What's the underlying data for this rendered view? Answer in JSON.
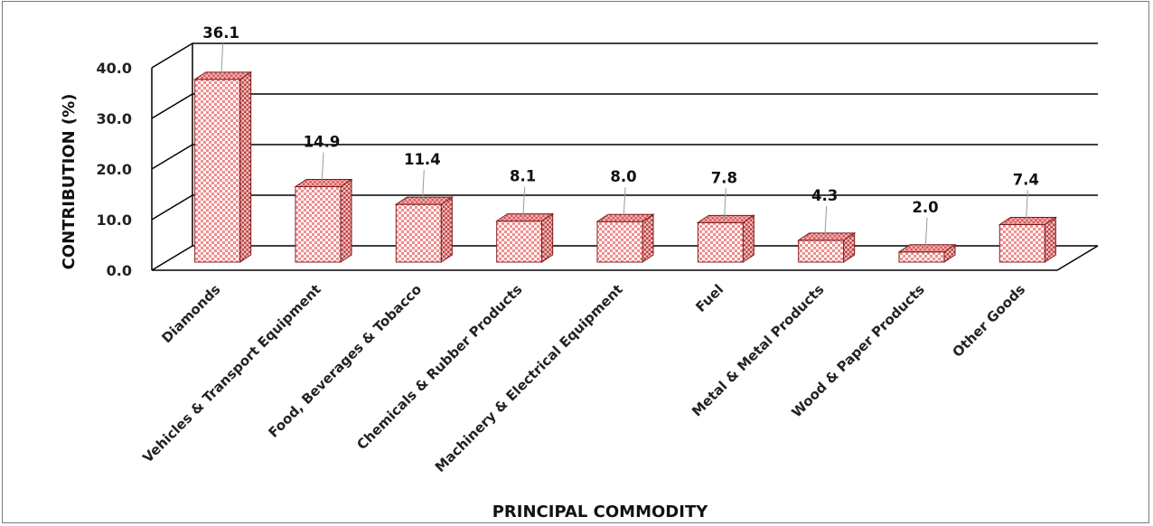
{
  "chart_data": {
    "type": "bar",
    "title": "",
    "xlabel": "PRINCIPAL COMMODITY",
    "ylabel": "CONTRIBUTION (%)",
    "ylim": [
      0,
      40
    ],
    "yticks": [
      "0.0",
      "10.0",
      "20.0",
      "30.0",
      "40.0"
    ],
    "grid": true,
    "three_d": true,
    "categories": [
      "Diamonds",
      "Vehicles & Transport Equipment",
      "Food, Beverages & Tobacco",
      "Chemicals & Rubber Products",
      "Machinery & Electrical Equipment",
      "Fuel",
      "Metal & Metal Products",
      "Wood & Paper Products",
      "Other Goods"
    ],
    "values": [
      36.1,
      14.9,
      11.4,
      8.1,
      8.0,
      7.8,
      4.3,
      2.0,
      7.4
    ],
    "data_labels": [
      "36.1",
      "14.9",
      "11.4",
      "8.1",
      "8.0",
      "7.8",
      "4.3",
      "2.0",
      "7.4"
    ],
    "colors": {
      "bar_front": "#f3a3a3",
      "bar_side": "#c84a4a",
      "bar_top": "#e36e6e",
      "checker": "#ffffff",
      "bar_edge": "#7a1a1a",
      "grid": "#000000"
    }
  }
}
